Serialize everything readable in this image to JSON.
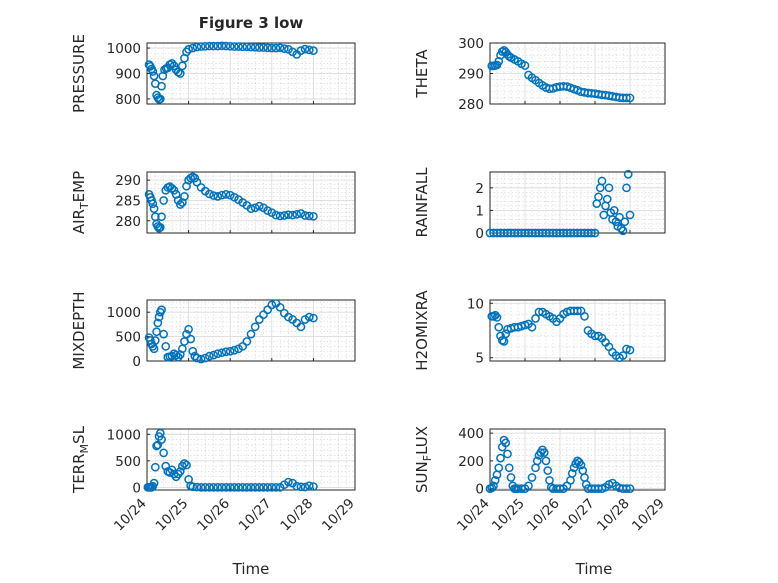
{
  "figure": {
    "title": "Figure 3 low",
    "xlabel": "Time",
    "colors": {
      "marker": "#0072BD",
      "axis": "#262626",
      "grid": "#d9d9d9"
    }
  },
  "chart_data": [
    {
      "type": "scatter",
      "panel": "top-left",
      "grid": true,
      "title": "Figure 3 low",
      "ylabel": "PRESSURE",
      "xlabel": "",
      "xlim": [
        24,
        29
      ],
      "ylim": [
        780,
        1020
      ],
      "yticks": [
        800,
        900,
        1000
      ],
      "ytick_labels": [
        "800",
        "900",
        "1000"
      ],
      "xticks": [
        24,
        25,
        26,
        27,
        28,
        29
      ],
      "xtick_labels": [],
      "marker": "open-circle",
      "x": [
        24.05,
        24.08,
        24.11,
        24.14,
        24.17,
        24.2,
        24.23,
        24.26,
        24.29,
        24.32,
        24.35,
        24.38,
        24.42,
        24.46,
        24.5,
        24.55,
        24.6,
        24.65,
        24.7,
        24.75,
        24.8,
        24.85,
        24.9,
        24.95,
        25.0,
        25.1,
        25.2,
        25.3,
        25.4,
        25.5,
        25.6,
        25.7,
        25.8,
        25.9,
        26.0,
        26.1,
        26.2,
        26.3,
        26.4,
        26.5,
        26.6,
        26.7,
        26.8,
        26.9,
        27.0,
        27.1,
        27.2,
        27.3,
        27.4,
        27.5,
        27.6,
        27.7,
        27.8,
        27.9,
        28.0
      ],
      "y": [
        935,
        928,
        918,
        908,
        890,
        860,
        815,
        805,
        798,
        800,
        850,
        890,
        915,
        920,
        922,
        935,
        940,
        930,
        915,
        905,
        900,
        930,
        960,
        985,
        995,
        1000,
        1004,
        1006,
        1007,
        1008,
        1008,
        1008,
        1009,
        1008,
        1007,
        1006,
        1006,
        1005,
        1005,
        1004,
        1003,
        1002,
        1002,
        1001,
        1000,
        1000,
        1001,
        998,
        995,
        985,
        975,
        990,
        996,
        993,
        990
      ]
    },
    {
      "type": "scatter",
      "panel": "top-right",
      "grid": true,
      "ylabel": "THETA",
      "xlabel": "",
      "xlim": [
        24,
        29
      ],
      "ylim": [
        280,
        300
      ],
      "yticks": [
        280,
        290,
        300
      ],
      "ytick_labels": [
        "280",
        "290",
        "300"
      ],
      "xticks": [
        24,
        25,
        26,
        27,
        28,
        29
      ],
      "xtick_labels": [],
      "marker": "open-circle",
      "x": [
        24.05,
        24.1,
        24.15,
        24.2,
        24.25,
        24.3,
        24.35,
        24.4,
        24.45,
        24.5,
        24.55,
        24.6,
        24.7,
        24.8,
        24.9,
        25.0,
        25.1,
        25.2,
        25.3,
        25.4,
        25.5,
        25.6,
        25.7,
        25.8,
        25.9,
        26.0,
        26.1,
        26.2,
        26.3,
        26.4,
        26.5,
        26.6,
        26.7,
        26.8,
        26.9,
        27.0,
        27.1,
        27.2,
        27.3,
        27.4,
        27.5,
        27.6,
        27.7,
        27.8,
        27.9,
        28.0
      ],
      "y": [
        292.5,
        292.5,
        292.6,
        292.8,
        294,
        296,
        297.2,
        297.6,
        297.0,
        296.2,
        295.6,
        295.2,
        294.6,
        294.0,
        293.2,
        292.6,
        289.5,
        288.6,
        287.8,
        286.9,
        286.1,
        285.4,
        285.0,
        285.1,
        285.5,
        285.7,
        285.8,
        285.7,
        285.3,
        284.9,
        284.5,
        284.0,
        283.8,
        283.6,
        283.5,
        283.4,
        283.2,
        283.0,
        282.9,
        282.7,
        282.5,
        282.3,
        282.1,
        282.0,
        282.0,
        282.0
      ]
    },
    {
      "type": "scatter",
      "panel": "row2-left",
      "grid": true,
      "ylabel": "AIR_TEMP",
      "xlabel": "",
      "xlim": [
        24,
        29
      ],
      "ylim": [
        277,
        292
      ],
      "yticks": [
        280,
        285,
        290
      ],
      "ytick_labels": [
        "280",
        "285",
        "290"
      ],
      "xticks": [
        24,
        25,
        26,
        27,
        28,
        29
      ],
      "xtick_labels": [],
      "marker": "open-circle",
      "x": [
        24.05,
        24.08,
        24.11,
        24.14,
        24.17,
        24.2,
        24.23,
        24.26,
        24.29,
        24.32,
        24.35,
        24.4,
        24.45,
        24.5,
        24.55,
        24.6,
        24.65,
        24.7,
        24.75,
        24.8,
        24.85,
        24.9,
        24.95,
        25.0,
        25.05,
        25.1,
        25.15,
        25.2,
        25.3,
        25.4,
        25.5,
        25.6,
        25.7,
        25.8,
        25.9,
        26.0,
        26.1,
        26.2,
        26.3,
        26.4,
        26.5,
        26.6,
        26.7,
        26.8,
        26.9,
        27.0,
        27.1,
        27.2,
        27.3,
        27.4,
        27.5,
        27.6,
        27.7,
        27.8,
        27.9,
        28.0
      ],
      "y": [
        286.5,
        285.8,
        285.0,
        284.2,
        283.0,
        281.0,
        279.2,
        278.6,
        278.2,
        278.4,
        281.0,
        285.0,
        287.5,
        288.2,
        288.4,
        288.0,
        287.5,
        286.5,
        285.0,
        284.0,
        284.5,
        286.0,
        288.5,
        290.0,
        290.5,
        290.8,
        290.5,
        289.5,
        288.2,
        287.3,
        286.6,
        286.2,
        286.0,
        286.3,
        286.5,
        286.3,
        285.8,
        285.2,
        284.5,
        283.8,
        283.0,
        283.2,
        283.6,
        283.2,
        282.5,
        282.0,
        281.4,
        281.2,
        281.3,
        281.5,
        281.4,
        281.6,
        281.8,
        281.3,
        281.2,
        281.1
      ]
    },
    {
      "type": "scatter",
      "panel": "row2-right",
      "grid": true,
      "ylabel": "RAINFALL",
      "xlabel": "",
      "xlim": [
        24,
        29
      ],
      "ylim": [
        0,
        2.7
      ],
      "yticks": [
        0,
        1,
        2
      ],
      "ytick_labels": [
        "0",
        "1",
        "2"
      ],
      "xticks": [
        24,
        25,
        26,
        27,
        28,
        29
      ],
      "xtick_labels": [],
      "marker": "open-circle",
      "x": [
        24.0,
        24.1,
        24.2,
        24.3,
        24.4,
        24.5,
        24.6,
        24.7,
        24.8,
        24.9,
        25.0,
        25.1,
        25.2,
        25.3,
        25.4,
        25.5,
        25.6,
        25.7,
        25.8,
        25.9,
        26.0,
        26.1,
        26.2,
        26.3,
        26.4,
        26.5,
        26.6,
        26.7,
        26.8,
        26.9,
        27.0,
        27.05,
        27.1,
        27.15,
        27.2,
        27.25,
        27.3,
        27.35,
        27.4,
        27.45,
        27.5,
        27.55,
        27.6,
        27.65,
        27.7,
        27.75,
        27.8,
        27.85,
        27.9,
        27.95,
        28.0
      ],
      "y": [
        0,
        0,
        0,
        0,
        0,
        0,
        0,
        0,
        0,
        0,
        0,
        0,
        0,
        0,
        0,
        0,
        0,
        0,
        0,
        0,
        0,
        0,
        0,
        0,
        0,
        0,
        0,
        0,
        0,
        0,
        0,
        1.3,
        1.6,
        2.0,
        2.3,
        0.8,
        1.2,
        1.5,
        2.0,
        0.9,
        0.6,
        1.0,
        0.5,
        0.3,
        0.7,
        0.2,
        0.1,
        0.5,
        2.0,
        2.6,
        0.8
      ]
    },
    {
      "type": "scatter",
      "panel": "row3-left",
      "grid": true,
      "ylabel": "MIXDEPTH",
      "xlabel": "",
      "xlim": [
        24,
        29
      ],
      "ylim": [
        0,
        1250
      ],
      "yticks": [
        0,
        500,
        1000
      ],
      "ytick_labels": [
        "0",
        "500",
        "1000"
      ],
      "xticks": [
        24,
        25,
        26,
        27,
        28,
        29
      ],
      "xtick_labels": [],
      "marker": "open-circle",
      "x": [
        24.05,
        24.08,
        24.11,
        24.14,
        24.17,
        24.2,
        24.23,
        24.26,
        24.29,
        24.32,
        24.35,
        24.4,
        24.45,
        24.5,
        24.55,
        24.6,
        24.65,
        24.7,
        24.75,
        24.8,
        24.85,
        24.9,
        24.95,
        25.0,
        25.05,
        25.1,
        25.15,
        25.2,
        25.3,
        25.4,
        25.5,
        25.6,
        25.7,
        25.8,
        25.9,
        26.0,
        26.1,
        26.2,
        26.3,
        26.4,
        26.5,
        26.6,
        26.7,
        26.8,
        26.9,
        27.0,
        27.1,
        27.2,
        27.3,
        27.4,
        27.5,
        27.6,
        27.7,
        27.8,
        27.9,
        28.0
      ],
      "y": [
        480,
        420,
        350,
        300,
        250,
        420,
        600,
        780,
        900,
        1000,
        1050,
        550,
        300,
        80,
        90,
        100,
        150,
        120,
        80,
        130,
        250,
        400,
        550,
        650,
        450,
        200,
        100,
        60,
        40,
        60,
        100,
        120,
        150,
        170,
        190,
        200,
        220,
        250,
        300,
        400,
        550,
        700,
        850,
        950,
        1050,
        1150,
        1180,
        1100,
        980,
        900,
        850,
        780,
        700,
        850,
        900,
        880
      ]
    },
    {
      "type": "scatter",
      "panel": "row3-right",
      "grid": true,
      "ylabel": "H2OMIXRA",
      "xlabel": "",
      "xlim": [
        24,
        29
      ],
      "ylim": [
        4.7,
        10.3
      ],
      "yticks": [
        5,
        10
      ],
      "ytick_labels": [
        "5",
        "10"
      ],
      "xticks": [
        24,
        25,
        26,
        27,
        28,
        29
      ],
      "xtick_labels": [],
      "marker": "open-circle",
      "x": [
        24.05,
        24.1,
        24.15,
        24.2,
        24.25,
        24.3,
        24.35,
        24.4,
        24.45,
        24.5,
        24.6,
        24.7,
        24.8,
        24.9,
        25.0,
        25.1,
        25.2,
        25.3,
        25.4,
        25.5,
        25.6,
        25.7,
        25.8,
        25.9,
        26.0,
        26.1,
        26.2,
        26.3,
        26.4,
        26.5,
        26.6,
        26.7,
        26.8,
        26.9,
        27.0,
        27.1,
        27.2,
        27.3,
        27.4,
        27.5,
        27.6,
        27.7,
        27.8,
        27.9,
        28.0
      ],
      "y": [
        8.8,
        8.8,
        8.9,
        8.7,
        7.8,
        7.0,
        6.6,
        6.5,
        7.2,
        7.6,
        7.7,
        7.8,
        7.8,
        7.9,
        8.0,
        8.1,
        7.8,
        8.6,
        9.2,
        9.2,
        9.0,
        8.8,
        8.6,
        8.3,
        8.6,
        9.0,
        9.2,
        9.3,
        9.3,
        9.3,
        9.3,
        8.8,
        7.5,
        7.2,
        7.0,
        7.0,
        6.8,
        6.4,
        6.0,
        5.5,
        5.2,
        5.0,
        5.2,
        5.8,
        5.7
      ]
    },
    {
      "type": "scatter",
      "panel": "bottom-left",
      "grid": true,
      "ylabel": "TERR_MSL",
      "xlabel": "Time",
      "xlim": [
        24,
        29
      ],
      "ylim": [
        -50,
        1100
      ],
      "yticks": [
        0,
        500,
        1000
      ],
      "ytick_labels": [
        "0",
        "500",
        "1000"
      ],
      "xticks": [
        24,
        25,
        26,
        27,
        28,
        29
      ],
      "xtick_labels": [
        "10/24",
        "10/25",
        "10/26",
        "10/27",
        "10/28",
        "10/29"
      ],
      "marker": "open-circle",
      "x": [
        24.02,
        24.05,
        24.08,
        24.11,
        24.14,
        24.17,
        24.2,
        24.23,
        24.26,
        24.29,
        24.32,
        24.35,
        24.4,
        24.45,
        24.5,
        24.55,
        24.6,
        24.65,
        24.7,
        24.75,
        24.8,
        24.85,
        24.9,
        24.95,
        25.0,
        25.05,
        25.1,
        25.2,
        25.3,
        25.4,
        25.5,
        25.6,
        25.7,
        25.8,
        25.9,
        26.0,
        26.1,
        26.2,
        26.3,
        26.4,
        26.5,
        26.6,
        26.7,
        26.8,
        26.9,
        27.0,
        27.1,
        27.2,
        27.3,
        27.4,
        27.5,
        27.6,
        27.7,
        27.8,
        27.9,
        28.0
      ],
      "y": [
        0,
        0,
        0,
        0,
        20,
        80,
        380,
        780,
        800,
        960,
        1020,
        900,
        650,
        400,
        300,
        280,
        330,
        250,
        200,
        250,
        300,
        400,
        450,
        420,
        150,
        30,
        10,
        5,
        0,
        0,
        0,
        0,
        0,
        0,
        0,
        0,
        0,
        0,
        0,
        0,
        0,
        0,
        0,
        0,
        0,
        0,
        0,
        0,
        50,
        100,
        80,
        20,
        10,
        5,
        30,
        15
      ]
    },
    {
      "type": "scatter",
      "panel": "bottom-right",
      "grid": true,
      "ylabel": "SUN_FLUX",
      "xlabel": "Time",
      "xlim": [
        24,
        29
      ],
      "ylim": [
        -10,
        430
      ],
      "yticks": [
        0,
        200,
        400
      ],
      "ytick_labels": [
        "0",
        "200",
        "400"
      ],
      "xticks": [
        24,
        25,
        26,
        27,
        28,
        29
      ],
      "xtick_labels": [
        "10/24",
        "10/25",
        "10/26",
        "10/27",
        "10/28",
        "10/29"
      ],
      "marker": "open-circle",
      "x": [
        24.0,
        24.05,
        24.1,
        24.15,
        24.2,
        24.25,
        24.3,
        24.35,
        24.4,
        24.45,
        24.5,
        24.55,
        24.6,
        24.65,
        24.7,
        24.75,
        24.8,
        24.9,
        25.0,
        25.1,
        25.2,
        25.3,
        25.35,
        25.4,
        25.45,
        25.5,
        25.55,
        25.6,
        25.65,
        25.7,
        25.75,
        25.8,
        25.9,
        26.0,
        26.1,
        26.2,
        26.3,
        26.35,
        26.4,
        26.45,
        26.5,
        26.55,
        26.6,
        26.65,
        26.7,
        26.75,
        26.8,
        26.9,
        27.0,
        27.1,
        27.2,
        27.3,
        27.4,
        27.5,
        27.6,
        27.7,
        27.8,
        27.9,
        28.0
      ],
      "y": [
        0,
        5,
        20,
        60,
        100,
        150,
        220,
        300,
        350,
        330,
        250,
        150,
        80,
        20,
        0,
        0,
        0,
        0,
        0,
        20,
        80,
        150,
        200,
        240,
        260,
        280,
        260,
        200,
        130,
        60,
        10,
        0,
        0,
        0,
        0,
        20,
        60,
        110,
        150,
        180,
        200,
        190,
        170,
        130,
        80,
        30,
        0,
        0,
        0,
        0,
        0,
        10,
        30,
        40,
        20,
        5,
        0,
        0,
        0
      ]
    }
  ]
}
